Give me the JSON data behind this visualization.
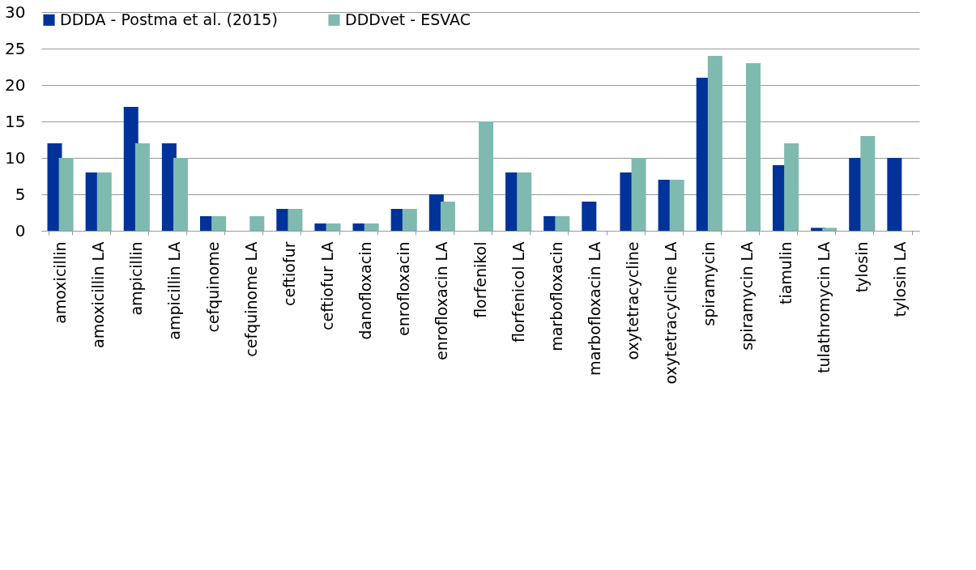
{
  "chart_data": {
    "type": "bar",
    "categories": [
      "amoxicillin",
      "amoxicillin LA",
      "ampicillin",
      "ampicillin LA",
      "cefquinome",
      "cefquinome LA",
      "ceftiofur",
      "ceftiofur LA",
      "danofloxacin",
      "enrofloxacin",
      "enrofloxacin LA",
      "florfenikol",
      "florfenicol LA",
      "marbofloxacin",
      "marbofloxacin LA",
      "oxytetracycline",
      "oxytetracycline LA",
      "spiramycin",
      "spiramycin LA",
      "tiamulin",
      "tulathromycin LA",
      "tylosin",
      "tylosin LA"
    ],
    "series": [
      {
        "name": "DDDA - Postma et al. (2015)",
        "color": "#003399",
        "values": [
          12,
          8,
          17,
          12,
          2,
          null,
          3,
          1,
          1,
          3,
          5,
          null,
          8,
          2,
          4,
          8,
          7,
          21,
          null,
          9,
          0.4,
          10,
          10
        ]
      },
      {
        "name": "DDDvet - ESVAC",
        "color": "#7fbab0",
        "values": [
          10,
          8,
          12,
          10,
          2,
          2,
          3,
          1,
          1,
          3,
          4,
          15,
          8,
          2,
          null,
          10,
          7,
          24,
          23,
          12,
          0.4,
          13,
          null
        ]
      }
    ],
    "ylim": [
      0,
      30
    ],
    "yticks": [
      0,
      5,
      10,
      15,
      20,
      25,
      30
    ],
    "grid": "y",
    "legend": "top"
  }
}
